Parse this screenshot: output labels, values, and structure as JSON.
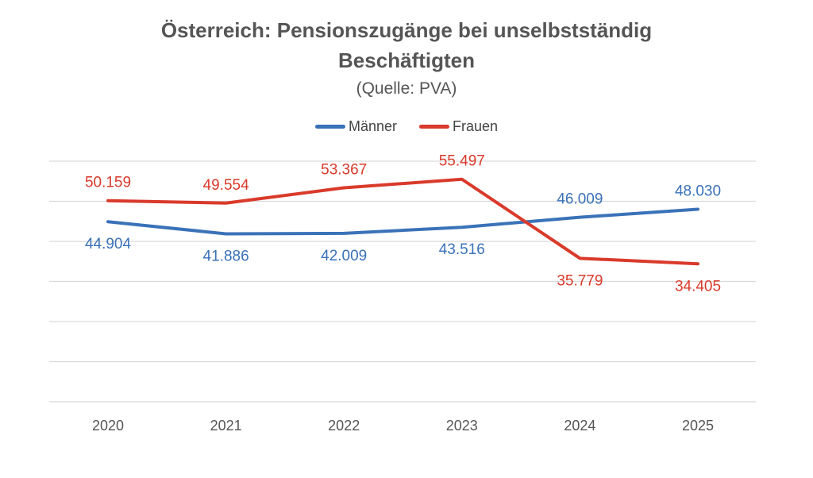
{
  "chart_data": {
    "type": "line",
    "title_line1": "Österreich: Pensionszugänge bei unselbstständig",
    "title_line2": "Beschäftigten",
    "subtitle": "(Quelle: PVA)",
    "categories": [
      "2020",
      "2021",
      "2022",
      "2023",
      "2024",
      "2025"
    ],
    "series": [
      {
        "name": "Männer",
        "color": "#3a72b8",
        "values": [
          44904,
          41886,
          42009,
          43516,
          46009,
          48030
        ],
        "labels": [
          "44.904",
          "41.886",
          "42.009",
          "43.516",
          "46.009",
          "48.030"
        ],
        "label_positions": [
          "below",
          "below",
          "below",
          "below",
          "above",
          "above"
        ]
      },
      {
        "name": "Frauen",
        "color": "#d93a2b",
        "values": [
          50159,
          49554,
          53367,
          55497,
          35779,
          34405
        ],
        "labels": [
          "50.159",
          "49.554",
          "53.367",
          "55.497",
          "35.779",
          "34.405"
        ],
        "label_positions": [
          "above",
          "above",
          "above",
          "above",
          "below",
          "below"
        ]
      }
    ],
    "ylim": [
      0,
      60000
    ],
    "grid": true,
    "legend_position": "top"
  }
}
